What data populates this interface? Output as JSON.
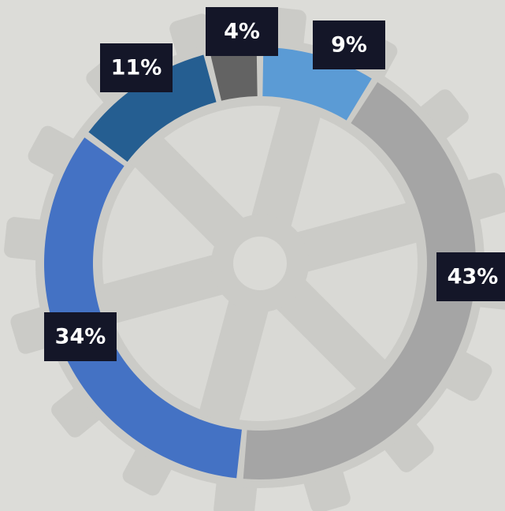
{
  "chart_data": {
    "type": "donut",
    "categories": [
      null,
      null,
      null,
      null,
      null
    ],
    "values": [
      9,
      43,
      34,
      11,
      4
    ],
    "value_labels": [
      "9%",
      "43%",
      "34%",
      "11%",
      "4%"
    ],
    "colors": [
      "#5b9bd5",
      "#a5a5a5",
      "#4472c4",
      "#255e91",
      "#636363"
    ]
  }
}
